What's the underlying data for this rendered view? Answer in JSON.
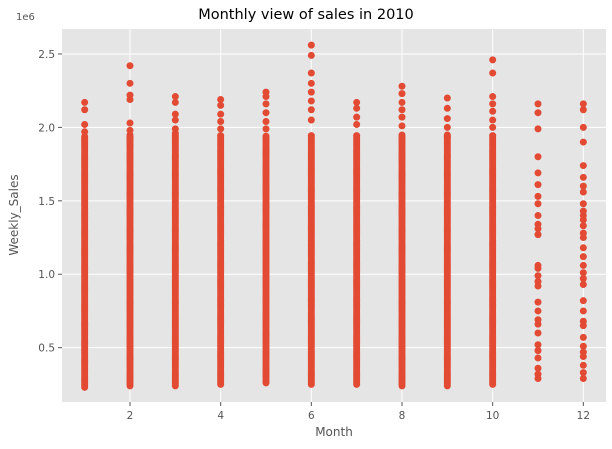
{
  "chart_data": {
    "type": "scatter",
    "title": "Monthly view of sales in 2010",
    "xlabel": "Month",
    "ylabel": "Weekly_Sales",
    "offset_label": "1e6",
    "xlim": [
      0.5,
      12.5
    ],
    "ylim": [
      0.13,
      2.67
    ],
    "x_ticks": [
      2,
      4,
      6,
      8,
      10,
      12
    ],
    "y_ticks": [
      0.5,
      1.0,
      1.5,
      2.0,
      2.5
    ],
    "x_tick_labels": [
      "2",
      "4",
      "6",
      "8",
      "10",
      "12"
    ],
    "y_tick_labels": [
      "0.5",
      "1.0",
      "1.5",
      "2.0",
      "2.5"
    ],
    "grid": true,
    "legend": "none",
    "colors": {
      "marker": "#E24A33",
      "plot_bg": "#E5E5E5",
      "grid": "#FFFFFF",
      "text": "#555555",
      "title": "#000000"
    },
    "series": [
      {
        "months": [
          1,
          2,
          3,
          4,
          5,
          6,
          7,
          8,
          9,
          10,
          11,
          12
        ],
        "min_sales": [
          0.23,
          0.24,
          0.24,
          0.25,
          0.26,
          0.25,
          0.25,
          0.24,
          0.24,
          0.25,
          0.29,
          0.29
        ],
        "max_sales": [
          2.17,
          2.42,
          2.21,
          2.19,
          2.24,
          2.56,
          2.17,
          2.28,
          2.2,
          2.46,
          2.16,
          2.16
        ],
        "upper_points": [
          [
            1,
            2.12
          ],
          [
            1,
            2.02
          ],
          [
            1,
            1.97
          ],
          [
            2,
            2.3
          ],
          [
            2,
            2.22
          ],
          [
            2,
            2.19
          ],
          [
            2,
            2.03
          ],
          [
            2,
            1.98
          ],
          [
            2,
            1.93
          ],
          [
            2,
            1.88
          ],
          [
            3,
            2.17
          ],
          [
            3,
            2.09
          ],
          [
            3,
            2.05
          ],
          [
            3,
            1.99
          ],
          [
            3,
            1.96
          ],
          [
            4,
            2.15
          ],
          [
            4,
            2.09
          ],
          [
            4,
            2.04
          ],
          [
            4,
            1.99
          ],
          [
            5,
            2.21
          ],
          [
            5,
            2.16
          ],
          [
            5,
            2.1
          ],
          [
            5,
            2.04
          ],
          [
            5,
            1.99
          ],
          [
            6,
            2.49
          ],
          [
            6,
            2.37
          ],
          [
            6,
            2.3
          ],
          [
            6,
            2.24
          ],
          [
            6,
            2.18
          ],
          [
            6,
            2.12
          ],
          [
            6,
            2.05
          ],
          [
            7,
            2.13
          ],
          [
            7,
            2.07
          ],
          [
            7,
            2.02
          ],
          [
            8,
            2.23
          ],
          [
            8,
            2.17
          ],
          [
            8,
            2.12
          ],
          [
            8,
            2.07
          ],
          [
            8,
            2.01
          ],
          [
            9,
            2.13
          ],
          [
            9,
            2.06
          ],
          [
            9,
            2.0
          ],
          [
            9,
            1.94
          ],
          [
            10,
            2.37
          ],
          [
            10,
            2.21
          ],
          [
            10,
            2.16
          ],
          [
            10,
            2.11
          ],
          [
            10,
            2.05
          ],
          [
            10,
            2.0
          ],
          [
            11,
            2.1
          ],
          [
            11,
            1.99
          ],
          [
            11,
            1.8
          ],
          [
            11,
            1.69
          ],
          [
            11,
            1.61
          ],
          [
            12,
            2.12
          ],
          [
            12,
            2.0
          ],
          [
            12,
            1.9
          ],
          [
            12,
            1.74
          ],
          [
            12,
            1.66
          ]
        ],
        "sparse_months": {
          "11": [
            1.53,
            1.48,
            1.4,
            1.34,
            1.31,
            1.27,
            1.06,
            1.04,
            0.99,
            0.95,
            0.92,
            0.81,
            0.75,
            0.69,
            0.66,
            0.6,
            0.52,
            0.48,
            0.43,
            0.36,
            0.32
          ],
          "12": [
            1.6,
            1.56,
            1.48,
            1.43,
            1.4,
            1.37,
            1.33,
            1.28,
            1.25,
            1.18,
            1.12,
            1.06,
            1.01,
            0.97,
            0.93,
            0.82,
            0.75,
            0.68,
            0.65,
            0.57,
            0.51,
            0.47,
            0.44,
            0.38,
            0.33
          ]
        }
      }
    ]
  }
}
